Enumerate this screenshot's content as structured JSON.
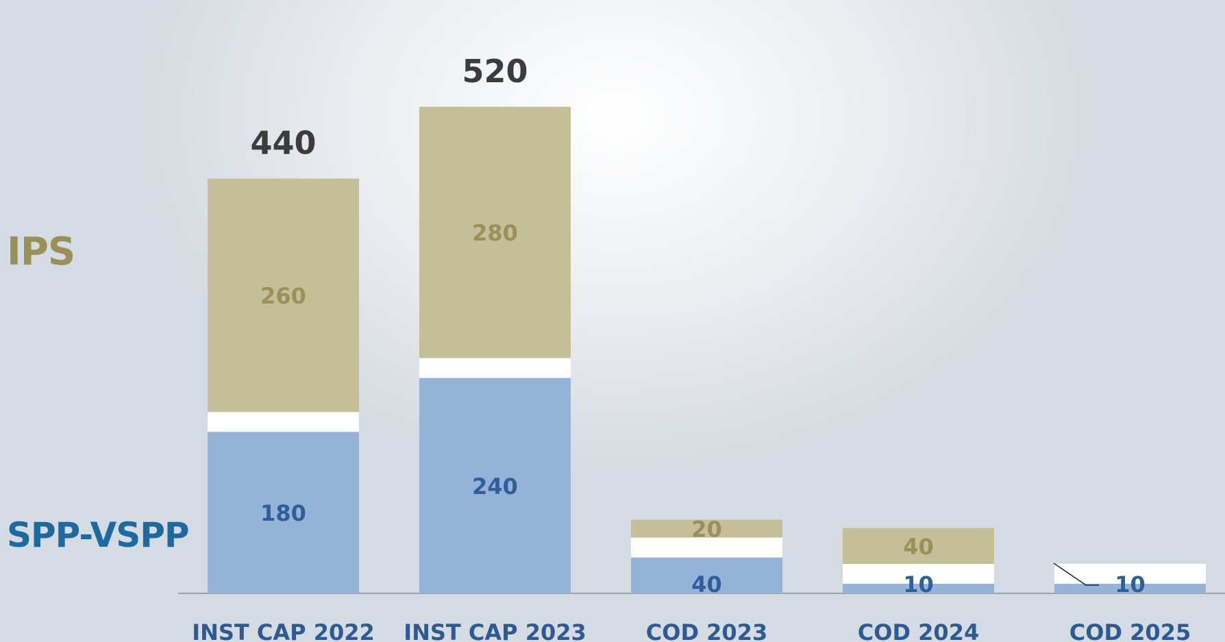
{
  "chart_data": {
    "type": "bar",
    "stacked": true,
    "categories": [
      "INST CAP 2022",
      "INST CAP 2023",
      "COD 2023",
      "COD 2024",
      "COD 2025"
    ],
    "series": [
      {
        "name": "SPP-VSPP",
        "values": [
          180,
          240,
          40,
          10,
          10
        ],
        "labels": [
          "180",
          "240",
          "40",
          "10",
          "10"
        ]
      },
      {
        "name": "IPS",
        "values": [
          260,
          280,
          20,
          40,
          null
        ],
        "labels": [
          "260",
          "280",
          "20",
          "40",
          ""
        ]
      }
    ],
    "totals": [
      "440",
      "520",
      "",
      "",
      ""
    ],
    "colors": {
      "spp": "#95b3d7",
      "ips": "#c4bf99",
      "spp_text": "#2d5f9a",
      "ips_text": "#9a9158",
      "total_text": "#3c3c3c",
      "category_text": "#2e5a94",
      "spp_legend": "#1d6aa0",
      "ips_legend": "#9a9158"
    },
    "legend_labels": {
      "ips": "IPS",
      "spp": "SPP-VSPP"
    },
    "ylim": [
      0,
      560
    ],
    "grid": false,
    "title": "",
    "xlabel": "",
    "ylabel": ""
  }
}
